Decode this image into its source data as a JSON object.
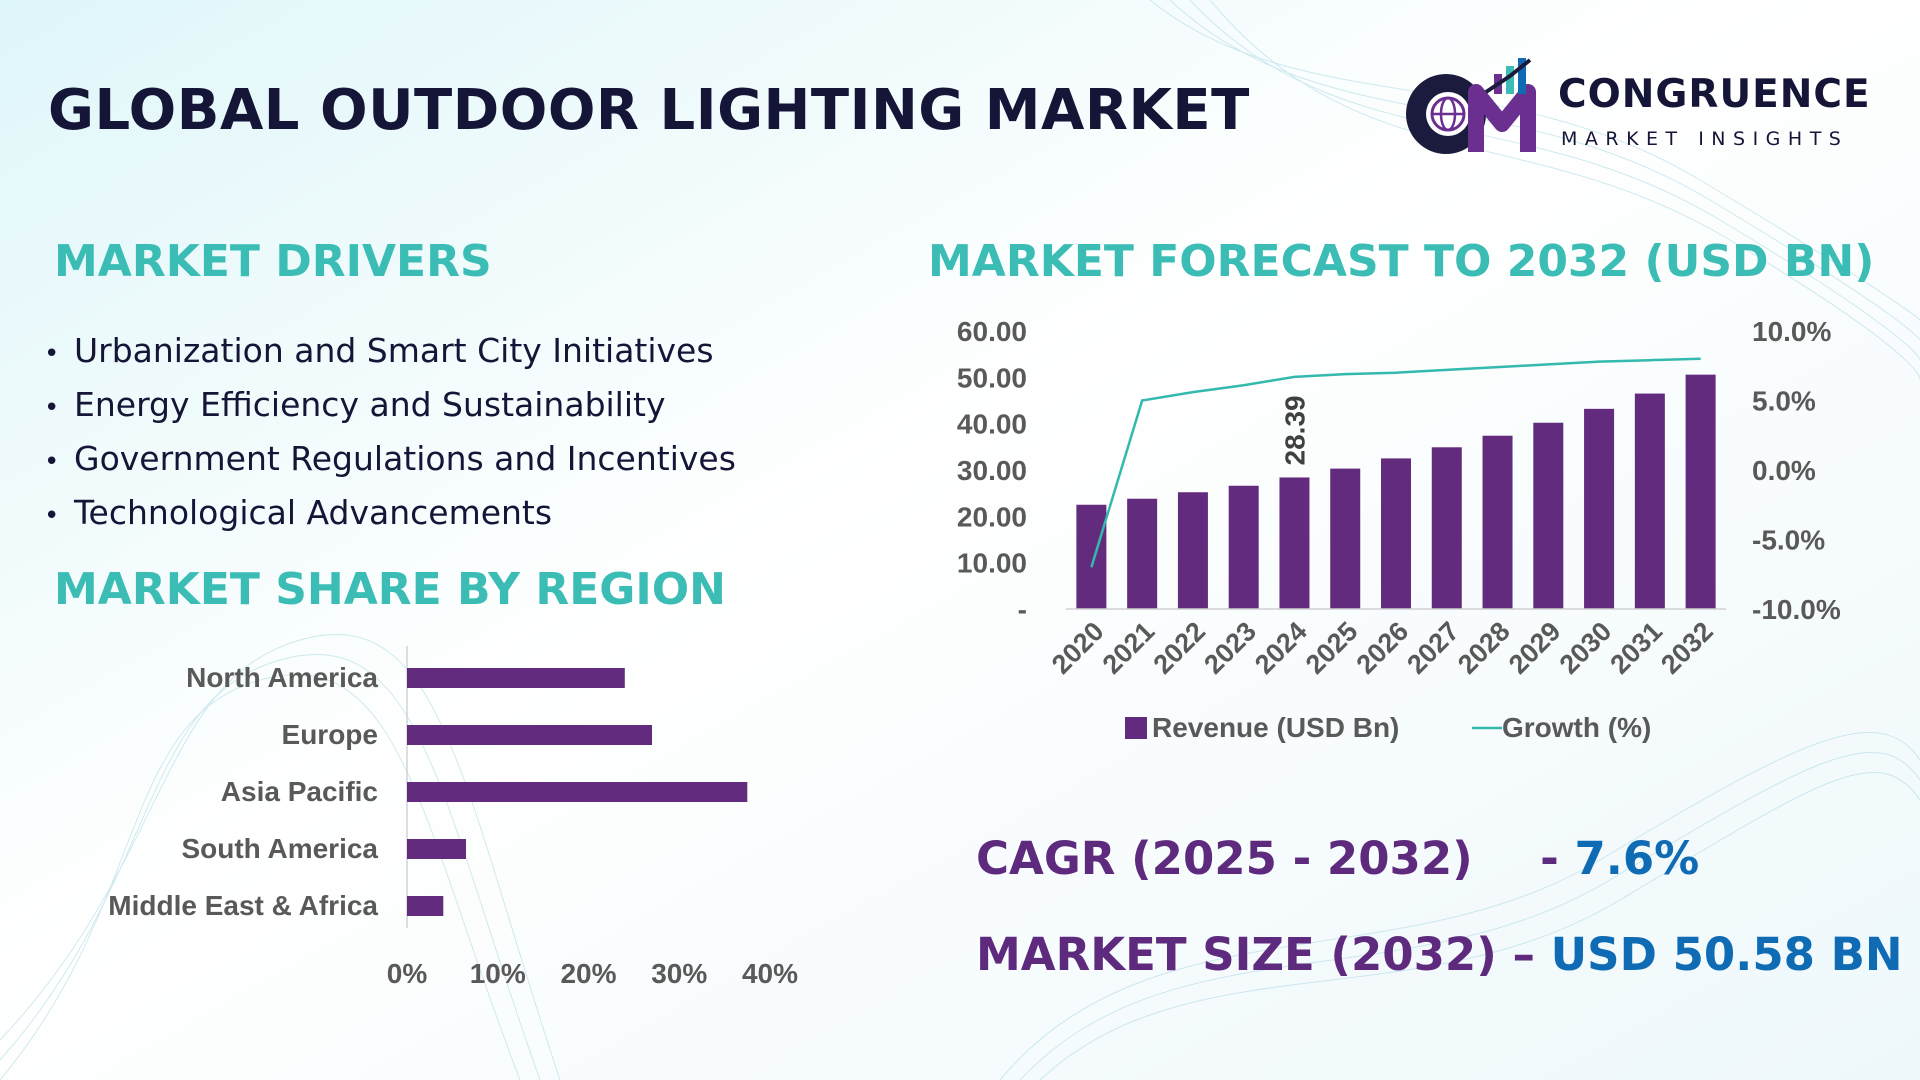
{
  "title": "GLOBAL OUTDOOR LIGHTING MARKET",
  "logo": {
    "initials": "CM",
    "name": "CONGRUENCE",
    "subtitle": "MARKET INSIGHTS",
    "icon": "globe-bar-chart-icon"
  },
  "colors": {
    "bar": "#632b7d",
    "line": "#33b9ad",
    "heading": "#3bbdb6",
    "title": "#151637",
    "kpi_label": "#5e2a7e",
    "kpi_value": "#0f6bb4"
  },
  "drivers": {
    "heading": "MARKET DRIVERS",
    "items": [
      "Urbanization and Smart City Initiatives",
      "Energy Efficiency and Sustainability",
      "Government Regulations and Incentives",
      "Technological Advancements"
    ]
  },
  "region": {
    "heading": "MARKET SHARE BY REGION"
  },
  "forecast": {
    "heading": "MARKET FORECAST TO 2032 (USD BN)"
  },
  "kpis": {
    "cagr_label": "CAGR (2025 - 2032)",
    "cagr_sep": "- ",
    "cagr_value": "7.6%",
    "size_label": "MARKET SIZE (2032)",
    "size_sep": "– ",
    "size_value": "USD 50.58 BN"
  },
  "chart_data": [
    {
      "type": "bar",
      "orientation": "horizontal",
      "categories": [
        "North America",
        "Europe",
        "Asia Pacific",
        "South America",
        "Middle East & Africa"
      ],
      "values": [
        24,
        27,
        37.5,
        6.5,
        4
      ],
      "xticks": [
        "0%",
        "10%",
        "20%",
        "30%",
        "40%"
      ],
      "xlim": [
        0,
        40
      ],
      "grid": false,
      "legend": "none"
    },
    {
      "type": "bar",
      "combo": "bar-line",
      "categories": [
        "2020",
        "2021",
        "2022",
        "2023",
        "2024",
        "2025",
        "2026",
        "2027",
        "2028",
        "2029",
        "2030",
        "2031",
        "2032"
      ],
      "series": [
        {
          "name": "Revenue (USD Bn)",
          "type": "bar",
          "axis": "left",
          "values": [
            22.5,
            23.8,
            25.2,
            26.6,
            28.39,
            30.3,
            32.5,
            34.9,
            37.4,
            40.2,
            43.2,
            46.5,
            50.58
          ]
        },
        {
          "name": "Growth (%)",
          "type": "line",
          "axis": "right",
          "values": [
            -7.0,
            5.0,
            5.6,
            6.1,
            6.7,
            6.9,
            7.0,
            7.2,
            7.4,
            7.6,
            7.8,
            7.9,
            8.0
          ]
        }
      ],
      "data_labels": [
        {
          "category": "2024",
          "text": "28.39"
        }
      ],
      "y_left": {
        "ticks": [
          "-",
          "10.00",
          "20.00",
          "30.00",
          "40.00",
          "50.00",
          "60.00"
        ],
        "range": [
          0,
          60
        ]
      },
      "y_right": {
        "ticks": [
          "-10.0%",
          "-5.0%",
          "0.0%",
          "5.0%",
          "10.0%"
        ],
        "range": [
          -10,
          10
        ]
      },
      "grid": false,
      "legend": "bottom"
    }
  ]
}
